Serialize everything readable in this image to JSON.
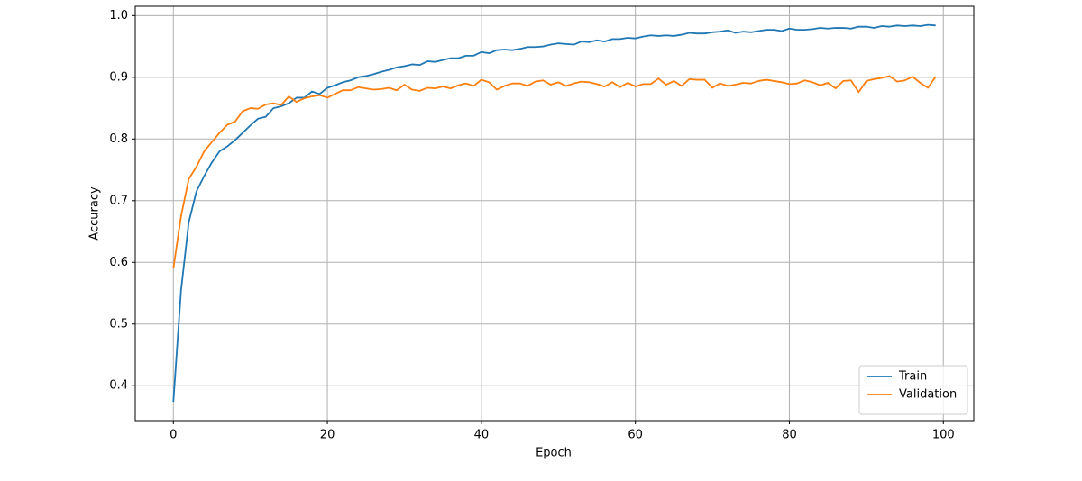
{
  "chart_data": {
    "type": "line",
    "xlabel": "Epoch",
    "ylabel": "Accuracy",
    "x": [
      0,
      1,
      2,
      3,
      4,
      5,
      6,
      7,
      8,
      9,
      10,
      11,
      12,
      13,
      14,
      15,
      16,
      17,
      18,
      19,
      20,
      21,
      22,
      23,
      24,
      25,
      26,
      27,
      28,
      29,
      30,
      31,
      32,
      33,
      34,
      35,
      36,
      37,
      38,
      39,
      40,
      41,
      42,
      43,
      44,
      45,
      46,
      47,
      48,
      49,
      50,
      51,
      52,
      53,
      54,
      55,
      56,
      57,
      58,
      59,
      60,
      61,
      62,
      63,
      64,
      65,
      66,
      67,
      68,
      69,
      70,
      71,
      72,
      73,
      74,
      75,
      76,
      77,
      78,
      79,
      80,
      81,
      82,
      83,
      84,
      85,
      86,
      87,
      88,
      89,
      90,
      91,
      92,
      93,
      94,
      95,
      96,
      97,
      98,
      99
    ],
    "series": [
      {
        "name": "Train",
        "color": "#1f77b4",
        "values": [
          0.374,
          0.555,
          0.665,
          0.715,
          0.74,
          0.762,
          0.78,
          0.788,
          0.798,
          0.81,
          0.822,
          0.833,
          0.836,
          0.85,
          0.853,
          0.858,
          0.867,
          0.867,
          0.877,
          0.873,
          0.883,
          0.887,
          0.892,
          0.895,
          0.9,
          0.902,
          0.905,
          0.909,
          0.912,
          0.916,
          0.918,
          0.921,
          0.92,
          0.926,
          0.925,
          0.928,
          0.931,
          0.931,
          0.935,
          0.935,
          0.941,
          0.939,
          0.944,
          0.945,
          0.944,
          0.946,
          0.949,
          0.949,
          0.95,
          0.953,
          0.955,
          0.954,
          0.953,
          0.958,
          0.957,
          0.96,
          0.958,
          0.962,
          0.962,
          0.964,
          0.963,
          0.966,
          0.968,
          0.967,
          0.968,
          0.967,
          0.969,
          0.972,
          0.971,
          0.971,
          0.973,
          0.974,
          0.976,
          0.972,
          0.974,
          0.973,
          0.975,
          0.977,
          0.977,
          0.975,
          0.979,
          0.977,
          0.977,
          0.978,
          0.98,
          0.979,
          0.98,
          0.98,
          0.979,
          0.982,
          0.982,
          0.98,
          0.983,
          0.982,
          0.984,
          0.983,
          0.984,
          0.983,
          0.985,
          0.984
        ]
      },
      {
        "name": "Validation",
        "color": "#ff7f0e",
        "values": [
          0.59,
          0.675,
          0.735,
          0.755,
          0.78,
          0.795,
          0.81,
          0.823,
          0.828,
          0.845,
          0.85,
          0.849,
          0.856,
          0.858,
          0.855,
          0.869,
          0.86,
          0.866,
          0.869,
          0.871,
          0.867,
          0.873,
          0.879,
          0.879,
          0.884,
          0.882,
          0.88,
          0.881,
          0.883,
          0.879,
          0.888,
          0.88,
          0.878,
          0.883,
          0.882,
          0.885,
          0.882,
          0.887,
          0.89,
          0.886,
          0.896,
          0.892,
          0.88,
          0.886,
          0.89,
          0.89,
          0.886,
          0.893,
          0.895,
          0.888,
          0.892,
          0.886,
          0.89,
          0.893,
          0.892,
          0.889,
          0.885,
          0.892,
          0.884,
          0.891,
          0.885,
          0.889,
          0.889,
          0.898,
          0.888,
          0.894,
          0.886,
          0.897,
          0.896,
          0.896,
          0.883,
          0.89,
          0.886,
          0.888,
          0.891,
          0.89,
          0.894,
          0.896,
          0.894,
          0.892,
          0.889,
          0.89,
          0.895,
          0.892,
          0.887,
          0.891,
          0.882,
          0.894,
          0.895,
          0.876,
          0.894,
          0.897,
          0.899,
          0.902,
          0.893,
          0.895,
          0.901,
          0.891,
          0.883,
          0.901
        ]
      }
    ],
    "xlim": [
      -4.95,
      103.95
    ],
    "xticks": [
      0,
      20,
      40,
      60,
      80,
      100
    ],
    "ylim": [
      0.3434,
      1.0151
    ],
    "yticks": [
      0.4,
      0.5,
      0.6,
      0.7,
      0.8,
      0.9,
      {
        "value": 1,
        "label": "1.0"
      }
    ],
    "grid": true,
    "legend": "lower right"
  }
}
